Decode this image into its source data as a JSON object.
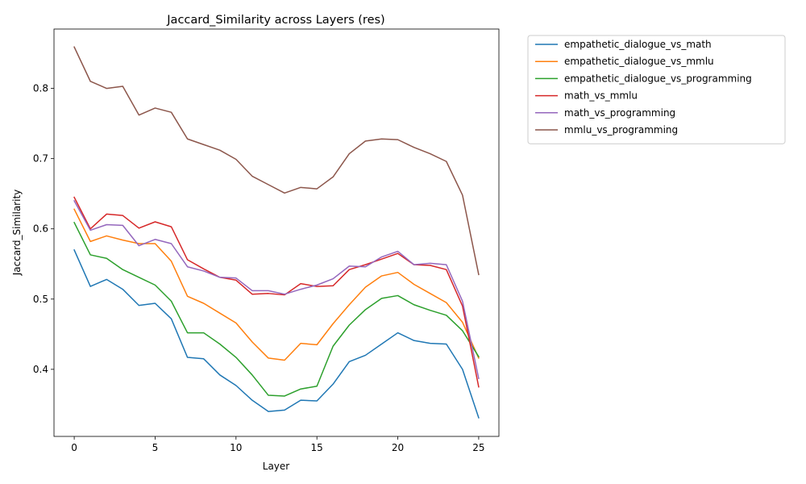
{
  "chart_data": {
    "type": "line",
    "title": "Jaccard_Similarity across Layers (res)",
    "xlabel": "Layer",
    "ylabel": "Jaccard_Similarity",
    "xlim": [
      -1.25,
      26.25
    ],
    "ylim": [
      0.3045,
      0.8845
    ],
    "xticks": [
      0,
      5,
      10,
      15,
      20,
      25
    ],
    "yticks": [
      0.4,
      0.5,
      0.6,
      0.7,
      0.8
    ],
    "ytick_labels": [
      "0.4",
      "0.5",
      "0.6",
      "0.7",
      "0.8"
    ],
    "grid": false,
    "legend_position": "outside-right-top",
    "x": [
      0,
      1,
      2,
      3,
      4,
      5,
      6,
      7,
      8,
      9,
      10,
      11,
      12,
      13,
      14,
      15,
      16,
      17,
      18,
      19,
      20,
      21,
      22,
      23,
      24,
      25
    ],
    "series": [
      {
        "name": "empathetic_dialogue_vs_math",
        "color": "#1f77b4",
        "values": [
          0.57,
          0.518,
          0.528,
          0.514,
          0.491,
          0.494,
          0.472,
          0.417,
          0.415,
          0.392,
          0.377,
          0.356,
          0.34,
          0.342,
          0.356,
          0.355,
          0.379,
          0.411,
          0.42,
          0.436,
          0.452,
          0.441,
          0.437,
          0.436,
          0.4,
          0.331
        ]
      },
      {
        "name": "empathetic_dialogue_vs_mmlu",
        "color": "#ff7f0e",
        "values": [
          0.628,
          0.582,
          0.59,
          0.584,
          0.579,
          0.579,
          0.554,
          0.504,
          0.494,
          0.48,
          0.466,
          0.439,
          0.416,
          0.413,
          0.437,
          0.435,
          0.465,
          0.492,
          0.517,
          0.533,
          0.538,
          0.521,
          0.508,
          0.495,
          0.467,
          0.416
        ]
      },
      {
        "name": "empathetic_dialogue_vs_programming",
        "color": "#2ca02c",
        "values": [
          0.609,
          0.563,
          0.558,
          0.542,
          0.531,
          0.52,
          0.497,
          0.452,
          0.452,
          0.436,
          0.417,
          0.392,
          0.363,
          0.362,
          0.372,
          0.376,
          0.433,
          0.463,
          0.485,
          0.501,
          0.505,
          0.492,
          0.484,
          0.477,
          0.455,
          0.418
        ]
      },
      {
        "name": "math_vs_mmlu",
        "color": "#d62728",
        "values": [
          0.645,
          0.6,
          0.621,
          0.619,
          0.601,
          0.61,
          0.603,
          0.556,
          0.543,
          0.531,
          0.527,
          0.507,
          0.508,
          0.506,
          0.522,
          0.518,
          0.519,
          0.542,
          0.549,
          0.557,
          0.565,
          0.549,
          0.548,
          0.542,
          0.49,
          0.375
        ]
      },
      {
        "name": "math_vs_programming",
        "color": "#9467bd",
        "values": [
          0.64,
          0.598,
          0.606,
          0.605,
          0.576,
          0.585,
          0.579,
          0.546,
          0.54,
          0.531,
          0.53,
          0.512,
          0.512,
          0.507,
          0.514,
          0.52,
          0.529,
          0.547,
          0.546,
          0.56,
          0.568,
          0.549,
          0.551,
          0.549,
          0.497,
          0.387
        ]
      },
      {
        "name": "mmlu_vs_programming",
        "color": "#8c564b",
        "values": [
          0.859,
          0.81,
          0.8,
          0.803,
          0.762,
          0.772,
          0.766,
          0.728,
          0.72,
          0.712,
          0.699,
          0.675,
          0.663,
          0.651,
          0.659,
          0.657,
          0.674,
          0.707,
          0.725,
          0.728,
          0.727,
          0.716,
          0.707,
          0.696,
          0.648,
          0.535
        ]
      }
    ]
  }
}
